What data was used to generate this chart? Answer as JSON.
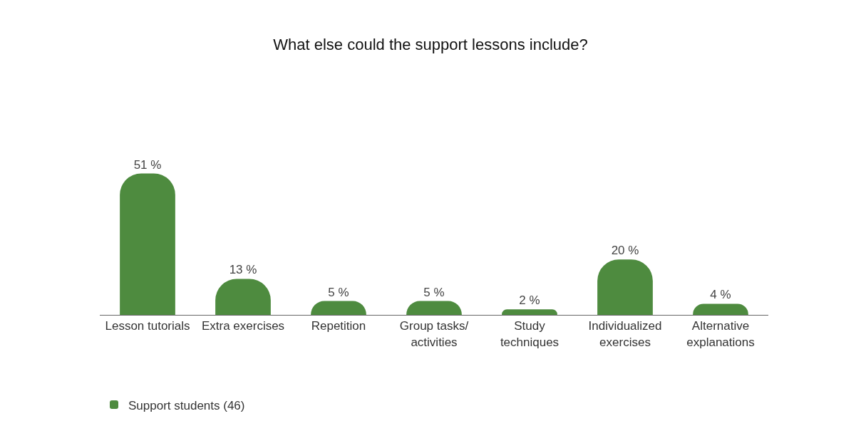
{
  "chart_data": {
    "type": "bar",
    "title": "What else could the support lessons include?",
    "categories": [
      "Lesson tutorials",
      "Extra exercises",
      "Repetition",
      "Group tasks/\nactivities",
      "Study\ntechniques",
      "Individualized\nexercises",
      "Alternative\nexplanations"
    ],
    "series": [
      {
        "name": "Support students (46)",
        "color": "#4e8b3f",
        "values": [
          51,
          13,
          5,
          5,
          2,
          20,
          4
        ],
        "value_labels": [
          "51 %",
          "13 %",
          "5 %",
          "5 %",
          "2 %",
          "20 %",
          "4 %"
        ]
      }
    ],
    "legend": "bottom left"
  }
}
